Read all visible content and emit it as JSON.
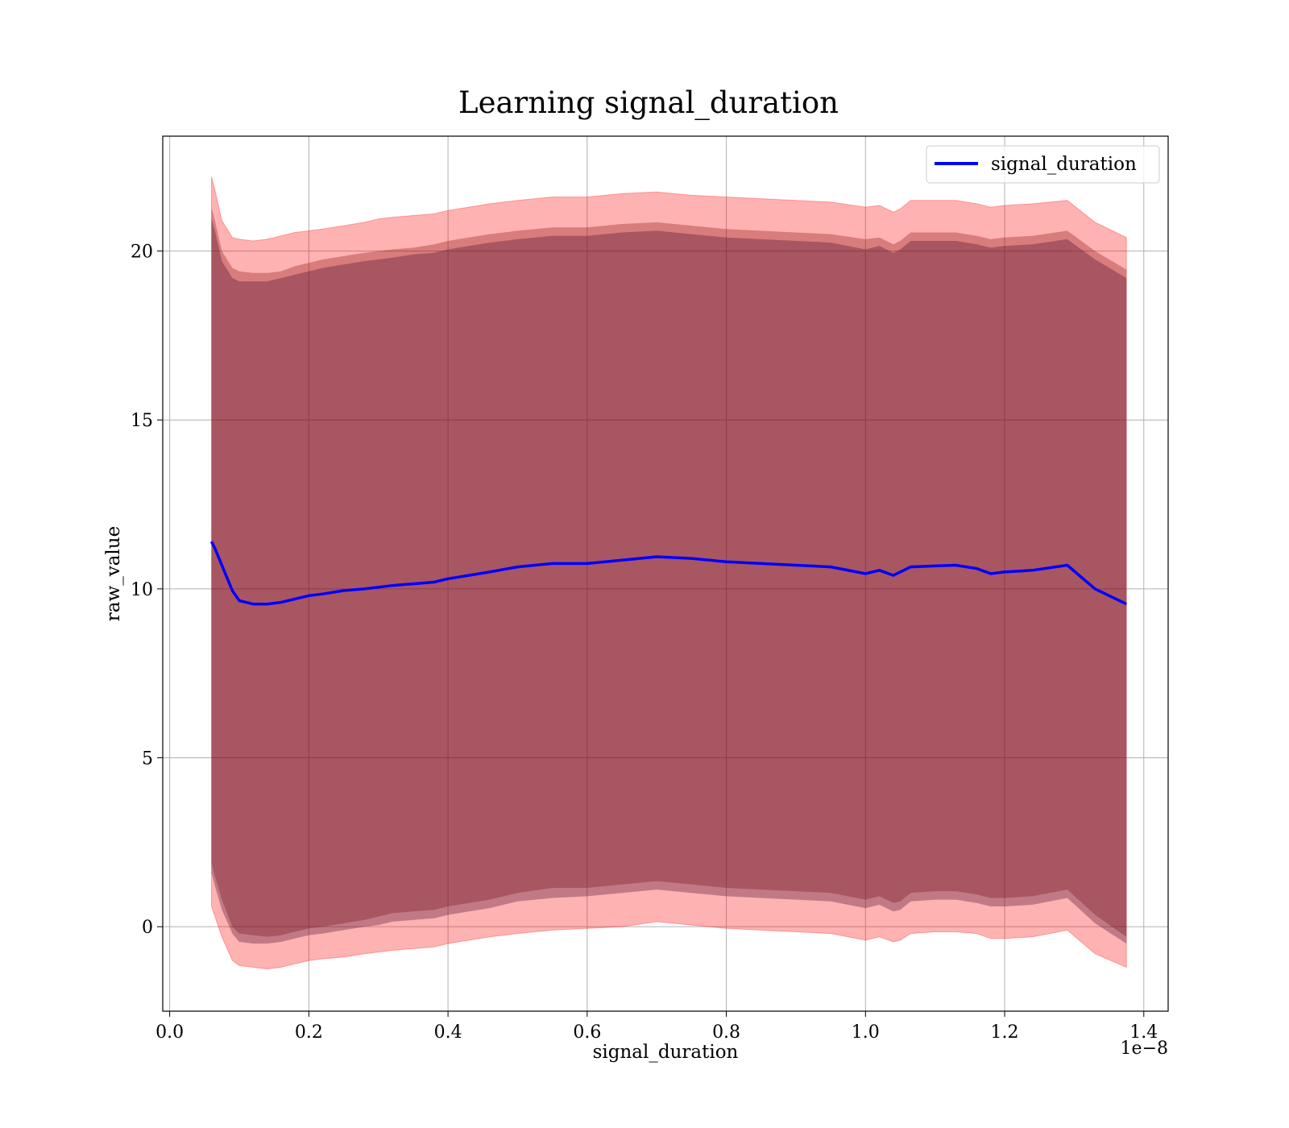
{
  "chart_data": {
    "type": "line",
    "title": "Learning signal_duration",
    "xlabel": "signal_duration",
    "ylabel": "raw_value",
    "x_offset_label": "1e−8",
    "xlim": [
      -0.01,
      1.435
    ],
    "ylim": [
      -2.5,
      23.4
    ],
    "xticks": [
      0.0,
      0.2,
      0.4,
      0.6,
      0.8,
      1.0,
      1.2,
      1.4
    ],
    "xtick_labels": [
      "0.0",
      "0.2",
      "0.4",
      "0.6",
      "0.8",
      "1.0",
      "1.2",
      "1.4"
    ],
    "yticks": [
      0,
      5,
      10,
      15,
      20
    ],
    "ytick_labels": [
      "0",
      "5",
      "10",
      "15",
      "20"
    ],
    "grid": true,
    "legend": {
      "position": "top-right",
      "entries": [
        "signal_duration"
      ]
    },
    "colors": {
      "line": "#0000ff",
      "band_outer": "#ff0000",
      "band_inner": "#800000"
    },
    "x": [
      0.06,
      0.065,
      0.075,
      0.09,
      0.1,
      0.12,
      0.14,
      0.16,
      0.18,
      0.2,
      0.22,
      0.25,
      0.28,
      0.3,
      0.32,
      0.35,
      0.38,
      0.4,
      0.43,
      0.46,
      0.5,
      0.55,
      0.6,
      0.65,
      0.7,
      0.75,
      0.8,
      0.85,
      0.9,
      0.95,
      1.0,
      1.02,
      1.04,
      1.05,
      1.065,
      1.1,
      1.13,
      1.16,
      1.18,
      1.2,
      1.24,
      1.29,
      1.33,
      1.375
    ],
    "series": [
      {
        "name": "signal_duration",
        "values": [
          11.4,
          11.2,
          10.7,
          9.95,
          9.65,
          9.55,
          9.55,
          9.6,
          9.7,
          9.8,
          9.85,
          9.95,
          10.0,
          10.05,
          10.1,
          10.15,
          10.2,
          10.3,
          10.4,
          10.5,
          10.65,
          10.75,
          10.75,
          10.85,
          10.95,
          10.9,
          10.8,
          10.75,
          10.7,
          10.65,
          10.45,
          10.55,
          10.4,
          10.5,
          10.65,
          10.68,
          10.7,
          10.6,
          10.45,
          10.5,
          10.55,
          10.7,
          10.0,
          9.55
        ],
        "outer_band": {
          "upper": [
            22.2,
            21.8,
            20.9,
            20.4,
            20.35,
            20.3,
            20.35,
            20.45,
            20.55,
            20.6,
            20.65,
            20.75,
            20.85,
            20.95,
            21.0,
            21.05,
            21.1,
            21.2,
            21.3,
            21.4,
            21.5,
            21.6,
            21.6,
            21.7,
            21.75,
            21.65,
            21.6,
            21.55,
            21.5,
            21.45,
            21.3,
            21.35,
            21.15,
            21.25,
            21.5,
            21.5,
            21.5,
            21.4,
            21.3,
            21.35,
            21.4,
            21.5,
            20.85,
            20.4
          ],
          "lower": [
            0.6,
            0.3,
            -0.3,
            -1.0,
            -1.15,
            -1.2,
            -1.25,
            -1.2,
            -1.1,
            -1.0,
            -0.95,
            -0.9,
            -0.8,
            -0.75,
            -0.7,
            -0.65,
            -0.6,
            -0.5,
            -0.4,
            -0.3,
            -0.2,
            -0.1,
            -0.05,
            0.0,
            0.15,
            0.05,
            -0.05,
            -0.1,
            -0.15,
            -0.2,
            -0.4,
            -0.3,
            -0.45,
            -0.4,
            -0.2,
            -0.15,
            -0.15,
            -0.2,
            -0.35,
            -0.35,
            -0.3,
            -0.1,
            -0.8,
            -1.2
          ]
        },
        "inner_band": {
          "upper": [
            21.3,
            20.9,
            20.0,
            19.5,
            19.4,
            19.35,
            19.35,
            19.4,
            19.55,
            19.65,
            19.75,
            19.85,
            19.95,
            20.0,
            20.05,
            20.1,
            20.2,
            20.3,
            20.4,
            20.5,
            20.6,
            20.7,
            20.7,
            20.8,
            20.85,
            20.75,
            20.65,
            20.6,
            20.55,
            20.5,
            20.35,
            20.4,
            20.2,
            20.3,
            20.55,
            20.55,
            20.55,
            20.45,
            20.35,
            20.4,
            20.45,
            20.6,
            20.0,
            19.45
          ],
          "lower": [
            1.9,
            1.5,
            0.8,
            0.0,
            -0.2,
            -0.25,
            -0.3,
            -0.25,
            -0.15,
            -0.05,
            0.0,
            0.1,
            0.2,
            0.3,
            0.4,
            0.45,
            0.5,
            0.6,
            0.7,
            0.8,
            1.0,
            1.15,
            1.15,
            1.25,
            1.35,
            1.25,
            1.15,
            1.1,
            1.05,
            1.0,
            0.8,
            0.9,
            0.7,
            0.75,
            1.0,
            1.05,
            1.05,
            0.95,
            0.85,
            0.85,
            0.9,
            1.1,
            0.35,
            -0.3
          ]
        },
        "core_band": {
          "upper": [
            20.95,
            20.6,
            19.7,
            19.2,
            19.1,
            19.1,
            19.1,
            19.2,
            19.3,
            19.4,
            19.5,
            19.6,
            19.7,
            19.75,
            19.8,
            19.9,
            19.95,
            20.05,
            20.15,
            20.25,
            20.35,
            20.45,
            20.45,
            20.55,
            20.6,
            20.5,
            20.4,
            20.35,
            20.3,
            20.25,
            20.05,
            20.15,
            19.95,
            20.05,
            20.3,
            20.3,
            20.3,
            20.2,
            20.1,
            20.15,
            20.2,
            20.35,
            19.75,
            19.2
          ],
          "lower": [
            1.6,
            1.2,
            0.5,
            -0.2,
            -0.45,
            -0.5,
            -0.5,
            -0.45,
            -0.35,
            -0.25,
            -0.2,
            -0.1,
            0.0,
            0.05,
            0.15,
            0.2,
            0.25,
            0.35,
            0.45,
            0.55,
            0.75,
            0.85,
            0.9,
            1.0,
            1.1,
            1.0,
            0.9,
            0.85,
            0.8,
            0.75,
            0.55,
            0.65,
            0.45,
            0.5,
            0.75,
            0.8,
            0.8,
            0.7,
            0.6,
            0.6,
            0.65,
            0.85,
            0.1,
            -0.5
          ]
        }
      }
    ]
  }
}
